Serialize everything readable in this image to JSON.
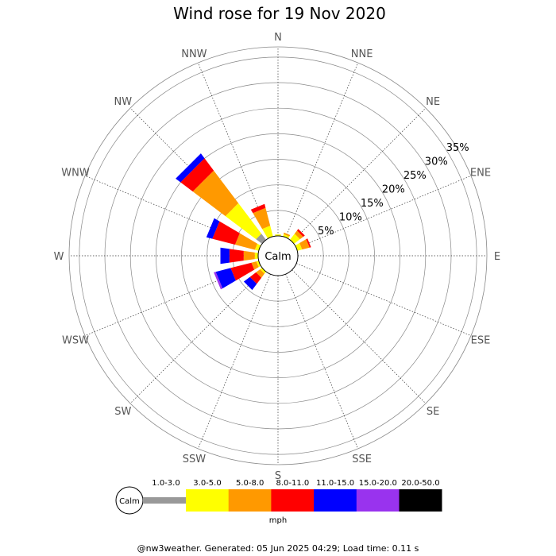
{
  "chart_data": {
    "type": "windrose",
    "title": "Wind rose for 19 Nov 2020",
    "directions": [
      "N",
      "NNE",
      "NE",
      "ENE",
      "E",
      "ESE",
      "SE",
      "SSE",
      "S",
      "SSW",
      "SW",
      "WSW",
      "W",
      "WNW",
      "NW",
      "NNW"
    ],
    "radial_ticks": [
      "5%",
      "10%",
      "15%",
      "20%",
      "25%",
      "30%",
      "35%"
    ],
    "radial_max_percent": 37,
    "calm_label": "Calm",
    "unit": "mph",
    "speed_bins": [
      {
        "label": "1.0-3.0",
        "color": "#999999"
      },
      {
        "label": "3.0-5.0",
        "color": "#ffff00"
      },
      {
        "label": "5.0-8.0",
        "color": "#ff9900"
      },
      {
        "label": "8.0-11.0",
        "color": "#ff0000"
      },
      {
        "label": "11.0-15.0",
        "color": "#0000ff"
      },
      {
        "label": "15.0-20.0",
        "color": "#9933ee"
      },
      {
        "label": "20.0-50.0",
        "color": "#000000"
      }
    ],
    "frequencies_percent": {
      "N": [
        0,
        0.3,
        0,
        0,
        0,
        0,
        0
      ],
      "NNE": [
        0,
        0.5,
        0.3,
        0,
        0,
        0,
        0
      ],
      "NE": [
        0,
        1.5,
        0.8,
        0.4,
        0,
        0,
        0
      ],
      "ENE": [
        0,
        1.0,
        1.5,
        0.3,
        0,
        0,
        0
      ],
      "E": [
        0,
        0,
        0,
        0,
        0,
        0,
        0
      ],
      "ESE": [
        0,
        0,
        0,
        0,
        0,
        0,
        0
      ],
      "SE": [
        0,
        0,
        0,
        0,
        0,
        0,
        0
      ],
      "SSE": [
        0,
        0,
        0,
        0,
        0,
        0,
        0
      ],
      "S": [
        0,
        0,
        0,
        0,
        0,
        0,
        0
      ],
      "SSW": [
        0,
        0,
        0,
        0,
        0,
        0,
        0
      ],
      "SW": [
        0,
        0.5,
        1.0,
        1.5,
        1.5,
        0,
        0
      ],
      "WSW": [
        0,
        0.5,
        1.0,
        4.2,
        3.0,
        0.4,
        0
      ],
      "W": [
        0,
        0.7,
        2.2,
        2.8,
        1.8,
        0,
        0
      ],
      "WNW": [
        0,
        0.8,
        4.0,
        4.6,
        1.2,
        0,
        0
      ],
      "NW": [
        1.5,
        7.5,
        8.0,
        3.0,
        1.2,
        0,
        0
      ],
      "NNW": [
        0,
        2.2,
        3.6,
        0.8,
        0,
        0,
        0
      ]
    }
  },
  "footer": "@nw3weather. Generated: 05 Jun 2025 04:29; Load time: 0.11 s"
}
